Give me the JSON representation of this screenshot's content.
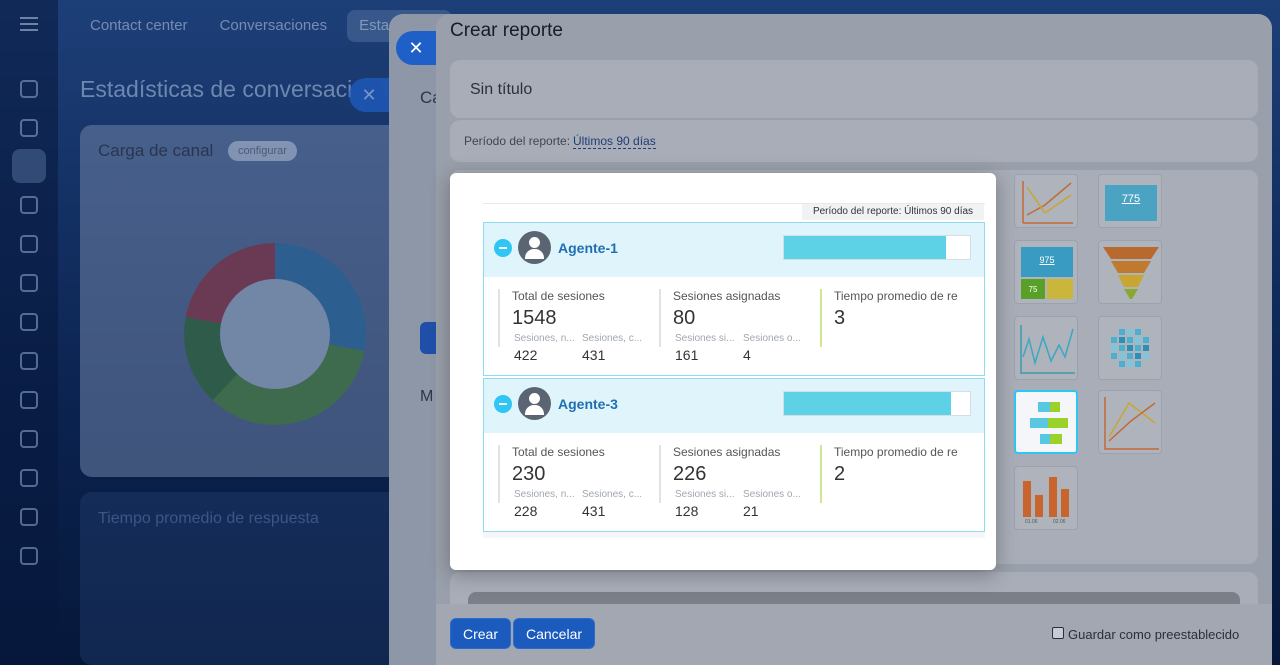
{
  "background": {
    "tabs": [
      "Contact center",
      "Conversaciones",
      "Estadísticas"
    ],
    "page_title": "Estadísticas de conversaci",
    "card1": {
      "title": "Carga de canal",
      "configure": "configurar"
    },
    "card2": {
      "title": "Tiempo promedio de respuesta"
    },
    "panel1": {
      "title_fragment": "Ca",
      "menu_fragment": "M"
    }
  },
  "panel": {
    "title": "Crear reporte",
    "report_name_placeholder": "Sin título",
    "period_label": "Período del reporte:",
    "period_value": "Últimos 90 días",
    "buttons": {
      "create": "Crear",
      "cancel": "Cancelar"
    },
    "save_preset_label": "Guardar como preestablecido"
  },
  "preview": {
    "period_text": "Período del reporte: Últimos 90 días",
    "agents": [
      {
        "name": "Agente-1",
        "bar_fraction": 0.87,
        "stats": {
          "total": {
            "label": "Total de sesiones",
            "value": "1548",
            "sub": [
              {
                "label": "Sesiones, n...",
                "value": "422"
              },
              {
                "label": "Sesiones, c...",
                "value": "431"
              }
            ]
          },
          "assigned": {
            "label": "Sesiones asignadas",
            "value": "80",
            "sub": [
              {
                "label": "Sesiones si...",
                "value": "161"
              },
              {
                "label": "Sesiones o...",
                "value": "4"
              }
            ]
          },
          "avg_time": {
            "label": "Tiempo promedio de re",
            "value": "3"
          }
        }
      },
      {
        "name": "Agente-3",
        "bar_fraction": 0.9,
        "stats": {
          "total": {
            "label": "Total de sesiones",
            "value": "230",
            "sub": [
              {
                "label": "Sesiones, n...",
                "value": "228"
              },
              {
                "label": "Sesiones, c...",
                "value": "431"
              }
            ]
          },
          "assigned": {
            "label": "Sesiones asignadas",
            "value": "226",
            "sub": [
              {
                "label": "Sesiones si...",
                "value": "128"
              },
              {
                "label": "Sesiones o...",
                "value": "21"
              }
            ]
          },
          "avg_time": {
            "label": "Tiempo promedio de re",
            "value": "2"
          }
        }
      }
    ]
  },
  "thumbnails": {
    "number_widget": "775",
    "tile_widget_value": "975",
    "tile_widget_small": "75",
    "bar_chart_labels": [
      "01.06",
      "02.06"
    ]
  },
  "colors": {
    "accent": "#2fc6f6",
    "primary": "#1b5bbd",
    "link": "#1f6fb2",
    "bar": "#5dd2e6"
  }
}
